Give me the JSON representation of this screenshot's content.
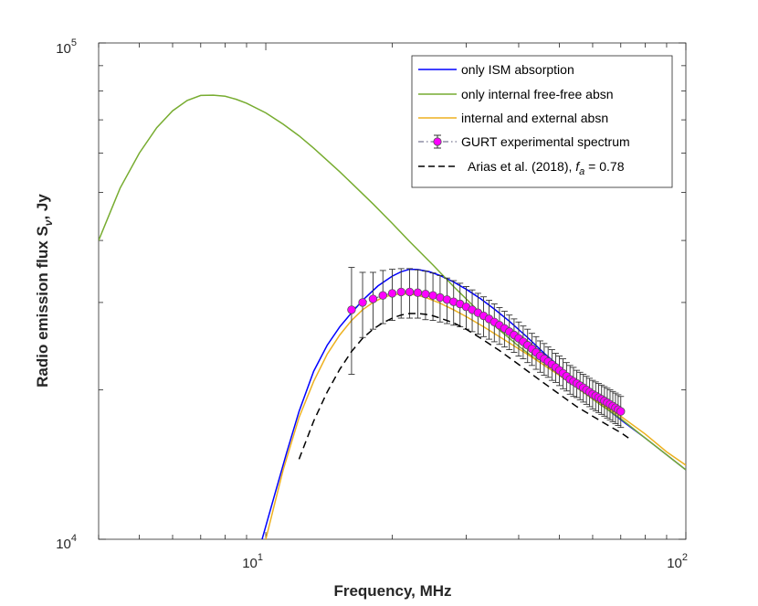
{
  "chart_data": {
    "type": "line",
    "x_scale": "log",
    "y_scale": "log",
    "xlim": [
      4,
      100
    ],
    "ylim": [
      10000,
      100000
    ],
    "xlabel": "Frequency, MHz",
    "ylabel": "Radio emission flux S",
    "ylabel_sub": "ν",
    "ylabel_suffix": ", Jy",
    "x_ticks": [
      {
        "value": 10,
        "base": "10",
        "exp": "1"
      },
      {
        "value": 100,
        "base": "10",
        "exp": "2"
      }
    ],
    "y_ticks": [
      {
        "value": 10000,
        "base": "10",
        "exp": "4"
      },
      {
        "value": 100000,
        "base": "10",
        "exp": "5"
      }
    ],
    "legend": {
      "location": "top-right",
      "entries": [
        {
          "label": "only ISM absorption",
          "color": "#0000ff",
          "style": "solid"
        },
        {
          "label": "only internal free-free absn",
          "color": "#77ac30",
          "style": "solid"
        },
        {
          "label": "internal and external absn",
          "color": "#edb120",
          "style": "solid"
        },
        {
          "label": "GURT experimental spectrum",
          "color": "#ff00ff",
          "style": "dashdot-marker"
        },
        {
          "label": "Arias et al. (2018),  ",
          "label_math": "f",
          "label_math_sub": "a",
          "label_tail": " = 0.78",
          "color": "#000000",
          "style": "dashed"
        }
      ]
    },
    "series": [
      {
        "name": "only ISM absorption",
        "color": "#0000ff",
        "style": "solid",
        "x": [
          9.8,
          10.5,
          11.2,
          12.0,
          13.0,
          14.0,
          15.0,
          16.0,
          17.0,
          18.5,
          20.0,
          21.0,
          22.0,
          23.0,
          24.5,
          26.0,
          28.0,
          30.0,
          32.5,
          35.0,
          38.0,
          42.0,
          46.0,
          50.0,
          55.0,
          60.0,
          66.0,
          72.0,
          80.0,
          90.0,
          100.0
        ],
        "y": [
          10000,
          12300,
          14900,
          18100,
          21800,
          24600,
          26800,
          28600,
          30300,
          32400,
          33900,
          34600,
          35000,
          34950,
          34600,
          34000,
          33000,
          31900,
          30500,
          29100,
          27500,
          25500,
          23700,
          22300,
          20700,
          19400,
          18100,
          17100,
          16000,
          14800,
          13800
        ]
      },
      {
        "name": "only internal free-free absn",
        "color": "#77ac30",
        "style": "solid",
        "x": [
          4.0,
          4.5,
          5.0,
          5.5,
          6.0,
          6.5,
          7.0,
          7.5,
          8.0,
          8.5,
          9.0,
          10.0,
          11.0,
          12.0,
          13.0,
          14.0,
          15.0,
          16.0,
          18.0,
          20.0,
          22.0,
          25.0,
          28.0,
          32.0,
          36.0,
          40.0,
          45.0,
          50.0,
          56.0,
          63.0,
          70.0,
          80.0,
          90.0,
          100.0
        ],
        "y": [
          40000,
          51000,
          60000,
          67500,
          73000,
          76600,
          78400,
          78500,
          78100,
          77000,
          75600,
          72300,
          68600,
          65000,
          61400,
          58000,
          55000,
          52200,
          47400,
          43300,
          39800,
          35700,
          32300,
          28900,
          26400,
          24500,
          22700,
          21400,
          20000,
          18600,
          17500,
          16000,
          14800,
          13800
        ]
      },
      {
        "name": "internal and external absn",
        "color": "#edb120",
        "style": "solid",
        "x": [
          10.0,
          10.5,
          11.0,
          12.0,
          13.0,
          14.0,
          15.0,
          16.0,
          17.0,
          18.0,
          19.0,
          20.0,
          21.0,
          22.0,
          23.0,
          24.0,
          26.0,
          28.0,
          30.0,
          33.0,
          36.0,
          40.0,
          45.0,
          50.0,
          55.0,
          60.0,
          65.0,
          70.0,
          80.0,
          90.0,
          100.0
        ],
        "y": [
          10000,
          11800,
          13800,
          17600,
          20800,
          23600,
          25800,
          27600,
          29000,
          30000,
          30700,
          31100,
          31200,
          31200,
          31000,
          30700,
          29900,
          29000,
          28100,
          26800,
          25600,
          24200,
          22700,
          21400,
          20200,
          19200,
          18400,
          17700,
          16300,
          15000,
          14100
        ]
      },
      {
        "name": "GURT experimental spectrum",
        "color": "#ff00ff",
        "style": "dashdot-marker",
        "x": [
          16.0,
          17.0,
          18.0,
          19.0,
          20.0,
          21.0,
          22.0,
          23.0,
          24.0,
          25.0,
          26.0,
          27.0,
          28.0,
          29.0,
          30.0,
          31.0,
          32.0,
          33.0,
          34.0,
          35.0,
          36.0,
          37.0,
          38.0,
          39.0,
          40.0,
          41.0,
          42.0,
          43.0,
          44.0,
          45.0,
          46.0,
          47.0,
          48.0,
          49.0,
          50.0,
          51.0,
          52.0,
          53.0,
          54.0,
          55.0,
          56.0,
          57.0,
          58.0,
          59.0,
          60.0,
          61.0,
          62.0,
          63.0,
          64.0,
          65.0,
          66.0,
          67.0,
          68.0,
          69.0,
          70.0
        ],
        "y": [
          29000,
          30000,
          30500,
          31000,
          31300,
          31500,
          31500,
          31400,
          31200,
          31000,
          30700,
          30400,
          30100,
          29800,
          29400,
          29000,
          28600,
          28200,
          27800,
          27400,
          27000,
          26600,
          26200,
          25800,
          25400,
          25000,
          24600,
          24200,
          23800,
          23400,
          23100,
          22800,
          22500,
          22200,
          21900,
          21600,
          21300,
          21000,
          20800,
          20600,
          20400,
          20200,
          20000,
          19800,
          19600,
          19450,
          19300,
          19150,
          19000,
          18850,
          18700,
          18550,
          18400,
          18250,
          18100
        ],
        "err_lo": [
          7500,
          4500,
          4000,
          3800,
          3700,
          3600,
          3600,
          3500,
          3500,
          3400,
          3300,
          3200,
          3100,
          3000,
          2900,
          2800,
          2700,
          2600,
          2500,
          2400,
          2300,
          2200,
          2100,
          2000,
          2000,
          1900,
          1900,
          1800,
          1800,
          1700,
          1700,
          1600,
          1600,
          1500,
          1500,
          1500,
          1400,
          1400,
          1400,
          1300,
          1300,
          1300,
          1300,
          1300,
          1300,
          1300,
          1300,
          1300,
          1300,
          1300,
          1300,
          1300,
          1300,
          1300,
          1300
        ],
        "err_hi": [
          6300,
          4500,
          4000,
          3800,
          3700,
          3600,
          3600,
          3500,
          3500,
          3400,
          3300,
          3200,
          3100,
          3000,
          2900,
          2800,
          2700,
          2600,
          2500,
          2400,
          2300,
          2200,
          2100,
          2000,
          2000,
          1900,
          1900,
          1800,
          1800,
          1700,
          1700,
          1600,
          1600,
          1500,
          1500,
          1500,
          1400,
          1400,
          1400,
          1300,
          1300,
          1300,
          1300,
          1300,
          1300,
          1300,
          1300,
          1300,
          1300,
          1300,
          1300,
          1300,
          1300,
          1300,
          1300
        ]
      },
      {
        "name": "Arias et al. (2018), f_a = 0.78",
        "color": "#000000",
        "style": "dashed",
        "x": [
          12.0,
          13.0,
          14.0,
          15.0,
          16.0,
          17.0,
          18.0,
          19.0,
          20.0,
          21.0,
          22.0,
          23.0,
          24.0,
          25.0,
          26.0,
          28.0,
          30.0,
          33.0,
          36.0,
          40.0,
          45.0,
          50.0,
          55.0,
          60.0,
          65.0,
          70.0,
          73.0
        ],
        "y": [
          14500,
          17300,
          19800,
          22000,
          23900,
          25400,
          26500,
          27300,
          27900,
          28300,
          28500,
          28500,
          28400,
          28200,
          27900,
          27300,
          26500,
          25200,
          24000,
          22500,
          20900,
          19600,
          18500,
          17700,
          17000,
          16400,
          16000
        ]
      }
    ]
  }
}
